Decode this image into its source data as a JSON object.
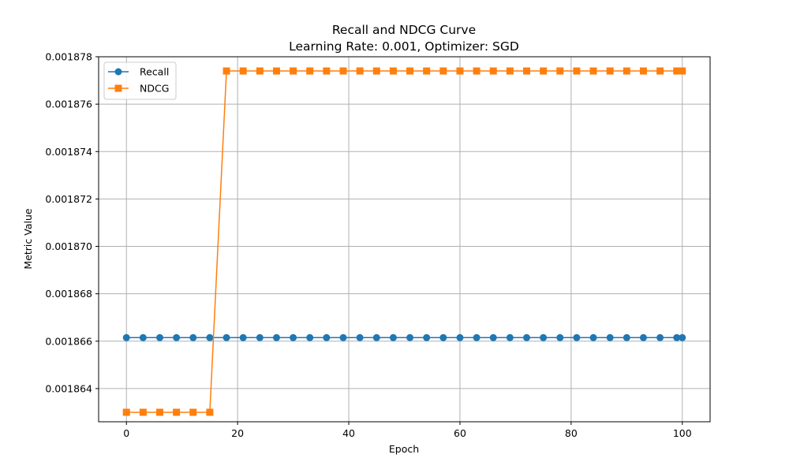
{
  "chart_data": {
    "type": "line",
    "title": "Recall and NDCG Curve",
    "subtitle": "Learning Rate: 0.001, Optimizer: SGD",
    "xlabel": "Epoch",
    "ylabel": "Metric Value",
    "xlim": [
      -5,
      105
    ],
    "ylim": [
      0.0018626,
      0.001878
    ],
    "xticks": [
      0,
      20,
      40,
      60,
      80,
      100
    ],
    "yticks": [
      0.001864,
      0.001866,
      0.001868,
      0.00187,
      0.001872,
      0.001874,
      0.001876,
      0.001878
    ],
    "ytick_labels": [
      "0.001864",
      "0.001866",
      "0.001868",
      "0.001870",
      "0.001872",
      "0.001874",
      "0.001876",
      "0.001878"
    ],
    "grid": true,
    "legend_position": "upper-left",
    "x": [
      0,
      3,
      6,
      9,
      12,
      15,
      18,
      21,
      24,
      27,
      30,
      33,
      36,
      39,
      42,
      45,
      48,
      51,
      54,
      57,
      60,
      63,
      66,
      69,
      72,
      75,
      78,
      81,
      84,
      87,
      90,
      93,
      96,
      99,
      100
    ],
    "series": [
      {
        "name": "Recall",
        "color": "#1f77b4",
        "marker": "circle",
        "values": [
          0.00186615,
          0.00186615,
          0.00186615,
          0.00186615,
          0.00186615,
          0.00186615,
          0.00186615,
          0.00186615,
          0.00186615,
          0.00186615,
          0.00186615,
          0.00186615,
          0.00186615,
          0.00186615,
          0.00186615,
          0.00186615,
          0.00186615,
          0.00186615,
          0.00186615,
          0.00186615,
          0.00186615,
          0.00186615,
          0.00186615,
          0.00186615,
          0.00186615,
          0.00186615,
          0.00186615,
          0.00186615,
          0.00186615,
          0.00186615,
          0.00186615,
          0.00186615,
          0.00186615,
          0.00186615,
          0.00186615
        ]
      },
      {
        "name": "NDCG",
        "color": "#ff7f0e",
        "marker": "square",
        "values": [
          0.001863,
          0.001863,
          0.001863,
          0.001863,
          0.001863,
          0.001863,
          0.0018774,
          0.0018774,
          0.0018774,
          0.0018774,
          0.0018774,
          0.0018774,
          0.0018774,
          0.0018774,
          0.0018774,
          0.0018774,
          0.0018774,
          0.0018774,
          0.0018774,
          0.0018774,
          0.0018774,
          0.0018774,
          0.0018774,
          0.0018774,
          0.0018774,
          0.0018774,
          0.0018774,
          0.0018774,
          0.0018774,
          0.0018774,
          0.0018774,
          0.0018774,
          0.0018774,
          0.0018774,
          0.0018774
        ]
      }
    ]
  }
}
